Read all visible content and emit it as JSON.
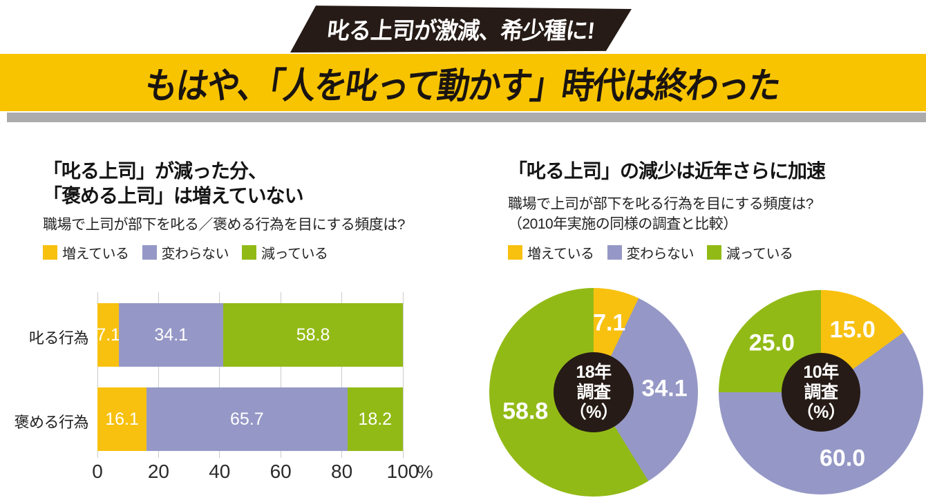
{
  "banner": {
    "tag_label": "叱る上司が激減、希少種に!",
    "headline": "もはや、「人を叱って動かす」時代は終わった"
  },
  "colors": {
    "increase": "#F8C110",
    "same": "#9598C6",
    "decrease": "#92BA16",
    "banner_yellow": "#F8C400",
    "ink_black": "#261B16",
    "shadow_gray": "#ACACAC",
    "grid_gray": "#CBCBCB"
  },
  "legend": {
    "items": [
      {
        "label": "増えている",
        "key": "increase"
      },
      {
        "label": "変わらない",
        "key": "same"
      },
      {
        "label": "減っている",
        "key": "decrease"
      }
    ]
  },
  "left_panel": {
    "title_line1": "「叱る上司」が減った分、",
    "title_line2": "「褒める上司」は増えていない",
    "subtitle": "職場で上司が部下を叱る／褒める行為を目にする頻度は?"
  },
  "right_panel": {
    "title": "「叱る上司」の減少は近年さらに加速",
    "subtitle_line1": "職場で上司が部下を叱る行為を目にする頻度は?",
    "subtitle_line2": "（2010年実施の同様の調査と比較）"
  },
  "chart_data": [
    {
      "type": "bar",
      "orientation": "horizontal",
      "stacked": true,
      "title": "「叱る上司」が減った分、「褒める上司」は増えていない",
      "subtitle": "職場で上司が部下を叱る／褒める行為を目にする頻度は?",
      "categories": [
        "叱る行為",
        "褒める行為"
      ],
      "series": [
        {
          "name": "増えている",
          "key": "increase",
          "values": [
            7.1,
            16.1
          ]
        },
        {
          "name": "変わらない",
          "key": "same",
          "values": [
            34.1,
            65.7
          ]
        },
        {
          "name": "減っている",
          "key": "decrease",
          "values": [
            58.8,
            18.2
          ]
        }
      ],
      "xlim": [
        0,
        100
      ],
      "x_ticks": [
        0,
        20,
        40,
        60,
        80,
        100
      ],
      "x_unit": "%",
      "grid": true,
      "value_labels": true,
      "legend_position": "top"
    },
    {
      "type": "pie",
      "donut": true,
      "title": "18年調査",
      "center_lines": [
        "18年",
        "調査",
        "（%）"
      ],
      "unit": "%",
      "slices": [
        {
          "label": "増えている",
          "key": "increase",
          "value": 7.1,
          "value_label": "7.1"
        },
        {
          "label": "変わらない",
          "key": "same",
          "value": 34.1,
          "value_label": "34.1"
        },
        {
          "label": "減っている",
          "key": "decrease",
          "value": 58.8,
          "value_label": "58.8"
        }
      ]
    },
    {
      "type": "pie",
      "donut": true,
      "title": "10年調査",
      "center_lines": [
        "10年",
        "調査",
        "（%）"
      ],
      "unit": "%",
      "slices": [
        {
          "label": "増えている",
          "key": "increase",
          "value": 15.0,
          "value_label": "15.0"
        },
        {
          "label": "変わらない",
          "key": "same",
          "value": 60.0,
          "value_label": "60.0"
        },
        {
          "label": "減っている",
          "key": "decrease",
          "value": 25.0,
          "value_label": "25.0"
        }
      ]
    }
  ]
}
